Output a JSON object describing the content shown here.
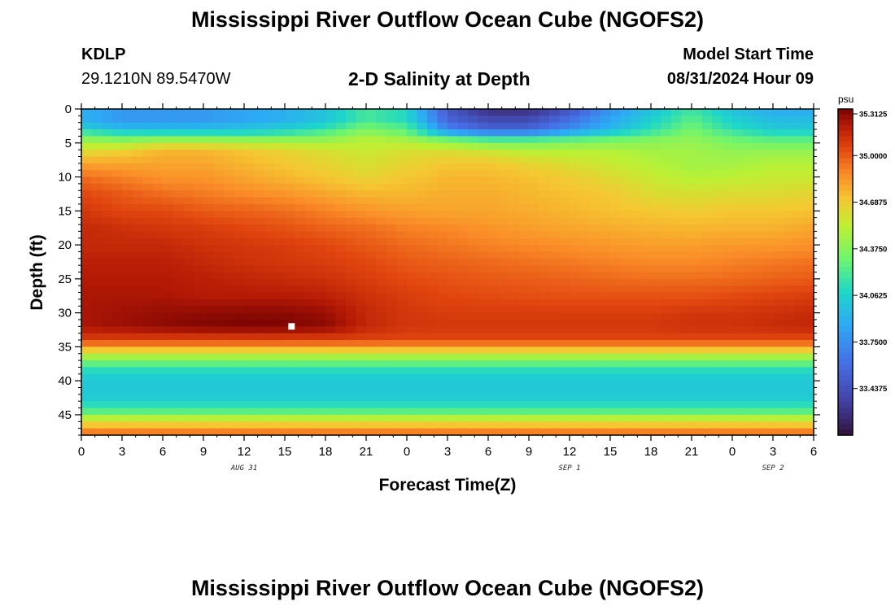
{
  "header": {
    "title": "Mississippi River Outflow Ocean Cube (NGOFS2)",
    "station_id": "KDLP",
    "coordinates": "29.1210N  89.5470W",
    "subtitle": "2-D Salinity at Depth",
    "model_start_label": "Model Start Time",
    "model_start_value": "08/31/2024 Hour 09"
  },
  "footer": {
    "title": "Mississippi River Outflow Ocean Cube (NGOFS2)"
  },
  "chart_data": {
    "type": "heatmap",
    "title": "2-D Salinity at Depth",
    "xlabel": "Forecast Time(Z)",
    "ylabel": "Depth (ft)",
    "x_tick_labels": [
      "0",
      "3",
      "6",
      "9",
      "12",
      "15",
      "18",
      "21",
      "0",
      "3",
      "6",
      "9",
      "12",
      "15",
      "18",
      "21",
      "0",
      "3",
      "6"
    ],
    "x_hours": [
      0,
      3,
      6,
      9,
      12,
      15,
      18,
      21,
      24,
      27,
      30,
      33,
      36,
      39,
      42,
      45,
      48,
      51,
      54
    ],
    "xlim": [
      0,
      54
    ],
    "date_labels": [
      {
        "text": "AUG 31",
        "hour": 12
      },
      {
        "text": "SEP 1",
        "hour": 36
      },
      {
        "text": "SEP 2",
        "hour": 51
      }
    ],
    "y_ticks": [
      0,
      5,
      10,
      15,
      20,
      25,
      30,
      35,
      40,
      45
    ],
    "ylim": [
      0,
      48
    ],
    "y_inverted": true,
    "colorbar": {
      "unit": "psu",
      "min": 33.125,
      "max": 35.3125,
      "tick_values": [
        35.3125,
        35.0,
        34.6875,
        34.375,
        34.0625,
        33.75,
        33.4375
      ],
      "tick_labels": [
        "35.3125",
        "35.0000",
        "34.6875",
        "34.3750",
        "34.0625",
        "33.7500",
        "33.4375"
      ]
    },
    "marker": {
      "hour": 15.5,
      "depth_ft": 32.0
    },
    "salinity_psu": {
      "depth_ft": [
        0.5,
        1.5,
        2.5,
        3.5,
        4.5,
        6,
        8,
        10,
        12.5,
        15,
        17.5,
        20,
        22.5,
        25,
        27.5,
        30,
        32,
        33.6,
        34.8,
        35.8,
        36.8,
        37.8,
        39,
        41,
        43,
        44.5,
        45.5,
        46.5,
        47.5
      ],
      "hours": [
        0,
        3,
        6,
        9,
        12,
        15,
        18,
        21,
        24,
        27,
        30,
        33,
        36,
        39,
        42,
        45,
        48,
        51,
        54
      ],
      "values": [
        [
          33.9,
          33.8,
          33.8,
          33.8,
          33.85,
          33.9,
          34.0,
          34.2,
          34.1,
          33.5,
          33.3,
          33.3,
          33.5,
          33.8,
          34.0,
          34.2,
          34.0,
          33.9,
          33.9
        ],
        [
          33.9,
          33.8,
          33.8,
          33.8,
          33.85,
          33.9,
          34.0,
          34.2,
          34.1,
          33.55,
          33.4,
          33.4,
          33.6,
          33.85,
          34.05,
          34.25,
          34.05,
          33.95,
          33.95
        ],
        [
          34.0,
          33.9,
          33.9,
          33.9,
          33.95,
          34.0,
          34.1,
          34.3,
          34.2,
          33.65,
          33.5,
          33.5,
          33.7,
          33.9,
          34.1,
          34.3,
          34.1,
          34.0,
          34.0
        ],
        [
          34.2,
          34.1,
          34.1,
          34.1,
          34.1,
          34.15,
          34.25,
          34.4,
          34.3,
          33.9,
          33.75,
          33.75,
          33.9,
          34.05,
          34.2,
          34.35,
          34.2,
          34.1,
          34.1
        ],
        [
          34.4,
          34.35,
          34.4,
          34.4,
          34.4,
          34.4,
          34.4,
          34.5,
          34.45,
          34.3,
          34.2,
          34.2,
          34.25,
          34.3,
          34.35,
          34.4,
          34.3,
          34.25,
          34.25
        ],
        [
          34.6,
          34.65,
          34.75,
          34.75,
          34.7,
          34.65,
          34.6,
          34.55,
          34.6,
          34.6,
          34.55,
          34.5,
          34.5,
          34.5,
          34.45,
          34.45,
          34.4,
          34.4,
          34.4
        ],
        [
          34.8,
          34.8,
          34.8,
          34.8,
          34.75,
          34.7,
          34.65,
          34.6,
          34.65,
          34.7,
          34.7,
          34.65,
          34.6,
          34.55,
          34.5,
          34.45,
          34.45,
          34.5,
          34.5
        ],
        [
          34.95,
          34.9,
          34.85,
          34.85,
          34.8,
          34.75,
          34.7,
          34.65,
          34.7,
          34.75,
          34.75,
          34.72,
          34.68,
          34.62,
          34.55,
          34.5,
          34.52,
          34.55,
          34.55
        ],
        [
          35.05,
          35.0,
          34.95,
          34.92,
          34.88,
          34.85,
          34.8,
          34.75,
          34.75,
          34.78,
          34.78,
          34.75,
          34.72,
          34.7,
          34.62,
          34.6,
          34.62,
          34.62,
          34.65
        ],
        [
          35.1,
          35.05,
          35.05,
          35.0,
          34.98,
          34.95,
          34.9,
          34.85,
          34.82,
          34.8,
          34.8,
          34.78,
          34.75,
          34.72,
          34.7,
          34.68,
          34.7,
          34.7,
          34.72
        ],
        [
          35.15,
          35.12,
          35.1,
          35.08,
          35.05,
          35.02,
          34.98,
          34.95,
          34.9,
          34.88,
          34.85,
          34.82,
          34.8,
          34.78,
          34.76,
          34.75,
          34.76,
          34.76,
          34.8
        ],
        [
          35.15,
          35.15,
          35.15,
          35.12,
          35.1,
          35.08,
          35.05,
          35.0,
          34.96,
          34.93,
          34.9,
          34.88,
          34.86,
          34.84,
          34.82,
          34.82,
          34.84,
          34.84,
          34.86
        ],
        [
          35.18,
          35.18,
          35.18,
          35.15,
          35.12,
          35.1,
          35.08,
          35.05,
          35.0,
          34.98,
          34.96,
          34.94,
          34.92,
          34.9,
          34.88,
          34.88,
          34.9,
          34.92,
          34.94
        ],
        [
          35.2,
          35.2,
          35.2,
          35.18,
          35.16,
          35.14,
          35.12,
          35.08,
          35.04,
          35.02,
          35.0,
          34.99,
          34.98,
          34.96,
          34.95,
          34.95,
          34.96,
          34.98,
          35.0
        ],
        [
          35.22,
          35.22,
          35.22,
          35.2,
          35.2,
          35.2,
          35.18,
          35.12,
          35.08,
          35.05,
          35.04,
          35.03,
          35.02,
          35.02,
          35.02,
          35.02,
          35.04,
          35.06,
          35.08
        ],
        [
          35.22,
          35.24,
          35.26,
          35.27,
          35.28,
          35.28,
          35.25,
          35.15,
          35.1,
          35.08,
          35.08,
          35.08,
          35.08,
          35.08,
          35.08,
          35.1,
          35.1,
          35.12,
          35.14
        ],
        [
          35.22,
          35.25,
          35.28,
          35.3,
          35.31,
          35.31,
          35.28,
          35.16,
          35.1,
          35.1,
          35.1,
          35.1,
          35.1,
          35.1,
          35.1,
          35.12,
          35.12,
          35.14,
          35.16
        ],
        [
          35.1,
          35.1,
          35.1,
          35.1,
          35.1,
          35.1,
          35.1,
          35.08,
          35.06,
          35.06,
          35.06,
          35.06,
          35.06,
          35.06,
          35.06,
          35.06,
          35.06,
          35.06,
          35.06
        ],
        [
          34.9,
          34.9,
          34.9,
          34.9,
          34.9,
          34.9,
          34.9,
          34.9,
          34.9,
          34.9,
          34.9,
          34.9,
          34.9,
          34.9,
          34.9,
          34.9,
          34.9,
          34.9,
          34.9
        ],
        [
          34.6,
          34.6,
          34.6,
          34.6,
          34.6,
          34.6,
          34.6,
          34.6,
          34.6,
          34.6,
          34.6,
          34.6,
          34.6,
          34.6,
          34.6,
          34.6,
          34.6,
          34.6,
          34.6
        ],
        [
          34.4,
          34.4,
          34.4,
          34.4,
          34.4,
          34.4,
          34.4,
          34.4,
          34.4,
          34.4,
          34.4,
          34.4,
          34.4,
          34.4,
          34.4,
          34.4,
          34.4,
          34.4,
          34.4
        ],
        [
          34.2,
          34.2,
          34.2,
          34.2,
          34.2,
          34.2,
          34.2,
          34.2,
          34.2,
          34.2,
          34.2,
          34.2,
          34.2,
          34.2,
          34.2,
          34.2,
          34.2,
          34.2,
          34.2
        ],
        [
          34.05,
          34.05,
          34.05,
          34.05,
          34.05,
          34.05,
          34.05,
          34.05,
          34.05,
          34.05,
          34.05,
          34.05,
          34.05,
          34.05,
          34.05,
          34.05,
          34.05,
          34.05,
          34.05
        ],
        [
          34.0,
          34.0,
          34.0,
          34.0,
          34.0,
          34.0,
          34.0,
          34.0,
          34.0,
          34.0,
          34.0,
          34.0,
          34.0,
          34.0,
          34.0,
          34.0,
          34.0,
          34.0,
          34.0
        ],
        [
          34.05,
          34.05,
          34.05,
          34.05,
          34.05,
          34.05,
          34.05,
          34.05,
          34.05,
          34.05,
          34.05,
          34.05,
          34.05,
          34.05,
          34.05,
          34.05,
          34.05,
          34.05,
          34.05
        ],
        [
          34.25,
          34.25,
          34.25,
          34.25,
          34.25,
          34.25,
          34.25,
          34.25,
          34.25,
          34.25,
          34.25,
          34.25,
          34.25,
          34.25,
          34.25,
          34.25,
          34.25,
          34.25,
          34.25
        ],
        [
          34.5,
          34.5,
          34.5,
          34.5,
          34.5,
          34.5,
          34.5,
          34.5,
          34.5,
          34.5,
          34.5,
          34.5,
          34.5,
          34.5,
          34.5,
          34.5,
          34.5,
          34.5,
          34.5
        ],
        [
          34.7,
          34.7,
          34.7,
          34.7,
          34.7,
          34.7,
          34.7,
          34.7,
          34.7,
          34.7,
          34.7,
          34.7,
          34.7,
          34.7,
          34.7,
          34.7,
          34.7,
          34.7,
          34.7
        ],
        [
          34.9,
          34.9,
          34.9,
          34.9,
          34.9,
          34.9,
          34.9,
          34.9,
          34.9,
          34.9,
          34.9,
          34.9,
          34.9,
          34.9,
          34.9,
          34.9,
          34.9,
          34.9,
          34.9
        ]
      ]
    }
  }
}
